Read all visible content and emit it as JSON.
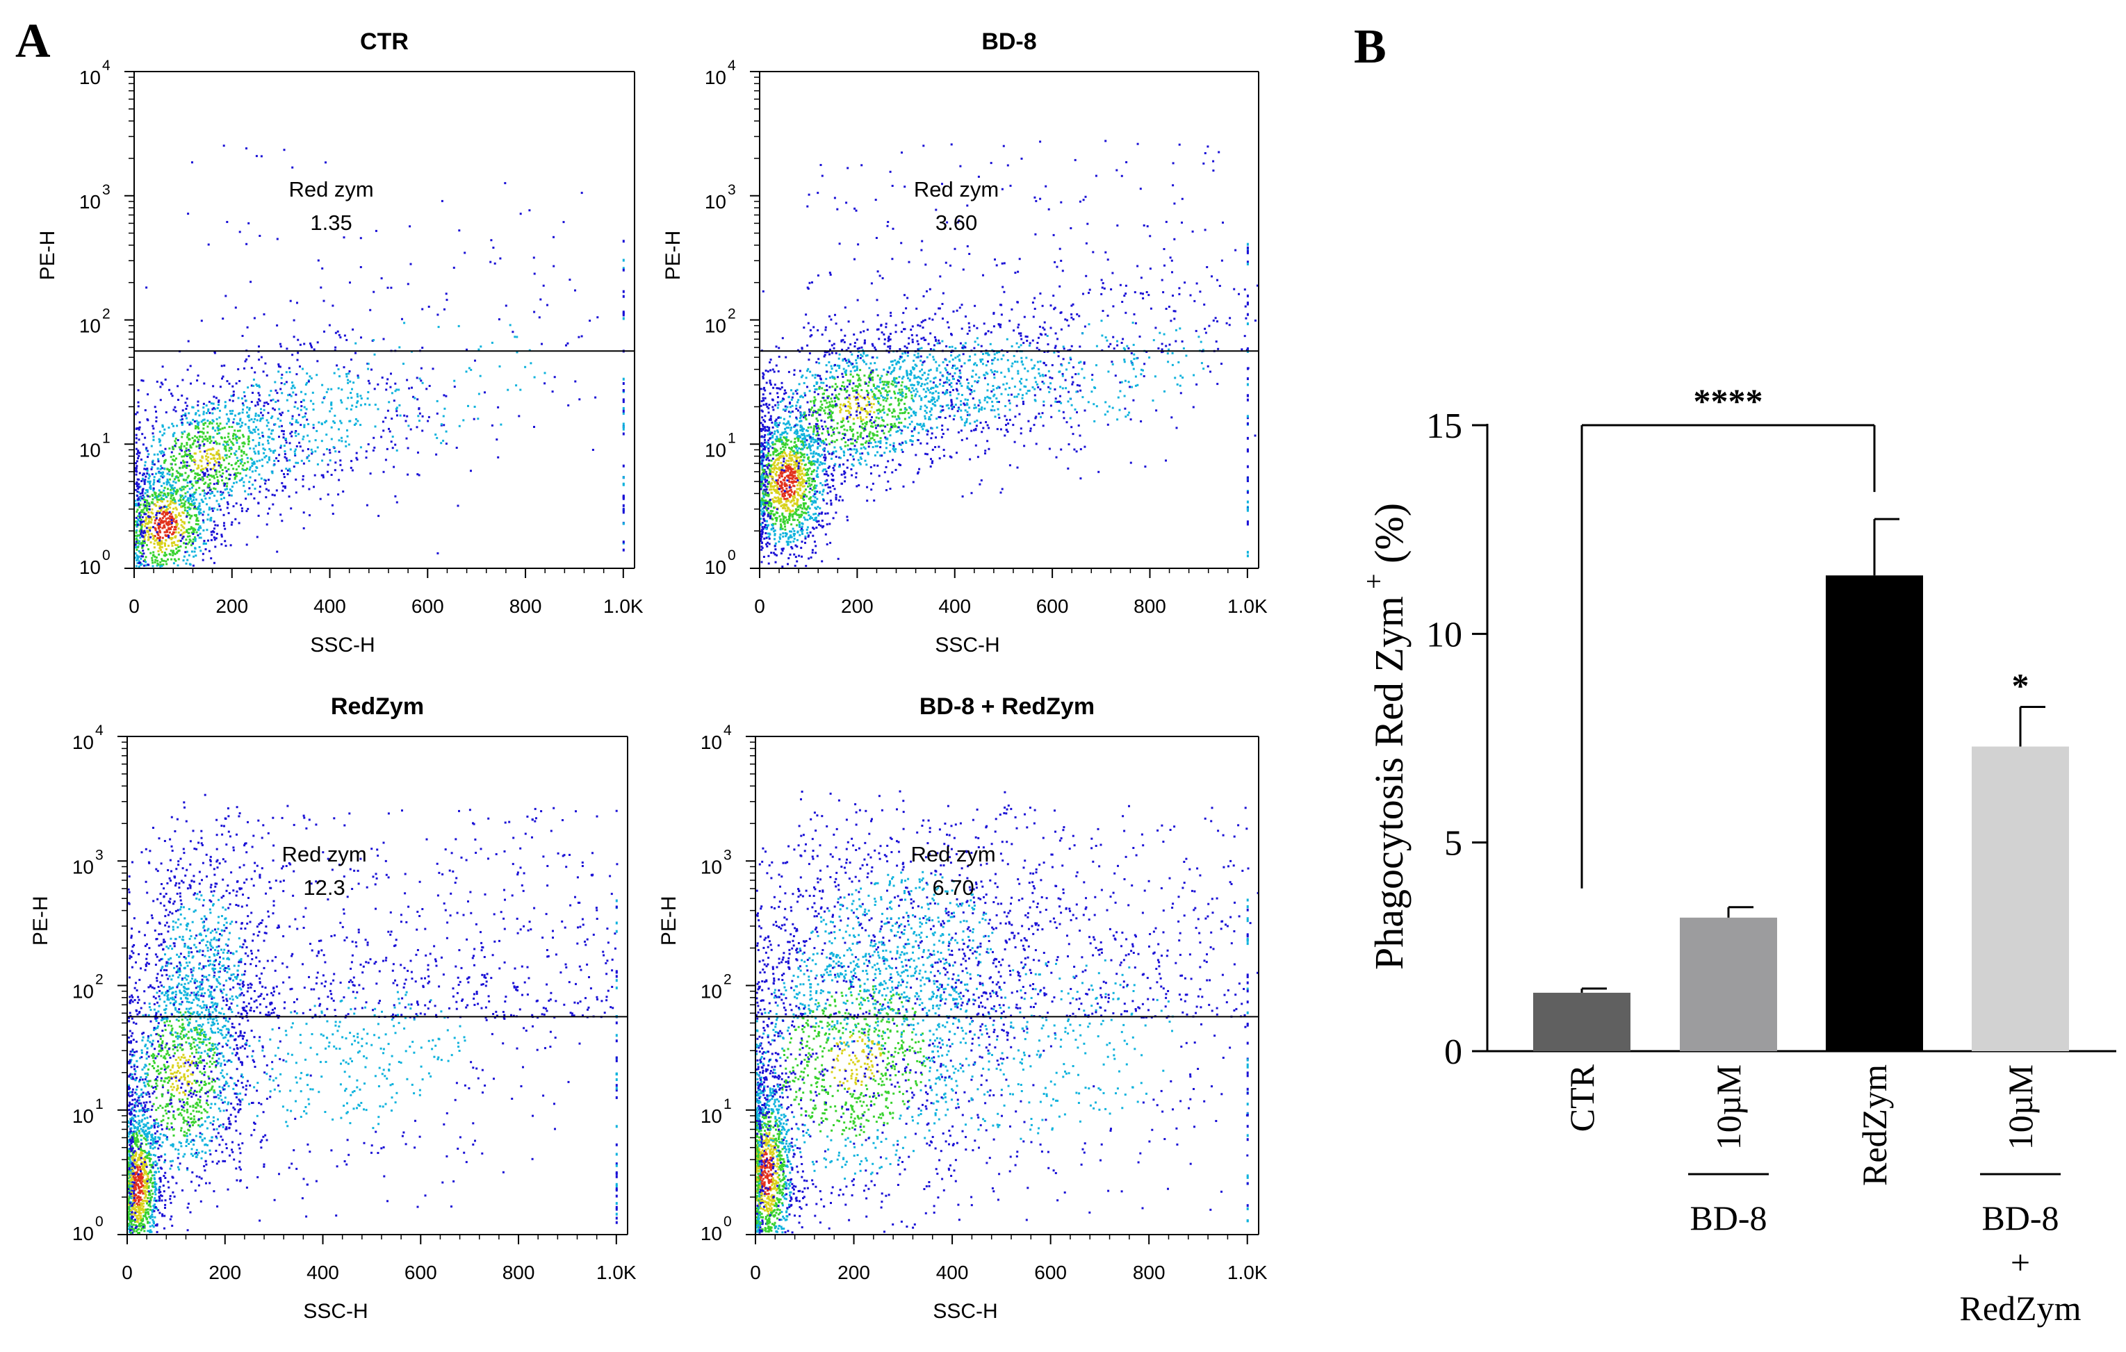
{
  "panel_a": {
    "label": "A",
    "plots": [
      {
        "title": "CTR",
        "gate_name": "Red zym",
        "gate_value": "1.35",
        "xlabel": "SSC-H",
        "ylabel": "PE-H"
      },
      {
        "title": "BD-8",
        "gate_name": "Red zym",
        "gate_value": "3.60",
        "xlabel": "SSC-H",
        "ylabel": "PE-H"
      },
      {
        "title": "RedZym",
        "gate_name": "Red zym",
        "gate_value": "12.3",
        "xlabel": "SSC-H",
        "ylabel": "PE-H"
      },
      {
        "title": "BD-8 + RedZym",
        "gate_name": "Red zym",
        "gate_value": "6.70",
        "xlabel": "SSC-H",
        "ylabel": "PE-H"
      }
    ],
    "x_ticks": [
      "0",
      "200",
      "400",
      "600",
      "800",
      "1.0K"
    ],
    "y_tick_base": "10",
    "y_tick_exponents": [
      "0",
      "1",
      "2",
      "3",
      "4"
    ]
  },
  "panel_b": {
    "label": "B",
    "bar_labels": [
      {
        "line1": "CTR"
      },
      {
        "line1": "10µM",
        "line2": "BD-8"
      },
      {
        "line1": "RedZym"
      },
      {
        "line1": "10µM",
        "line2": "BD-8",
        "line3": "+",
        "line4": "RedZym"
      }
    ],
    "significance": {
      "bracket": "****",
      "bar4": "*"
    }
  },
  "colors": {
    "bar1": "#606060",
    "bar2": "#9c9c9e",
    "bar3": "#000000",
    "bar4": "#d2d2d2",
    "dot_blue": "#1a10d6",
    "dot_cyan": "#11b3dd",
    "dot_green": "#38d22f",
    "dot_yellow": "#d9d21c",
    "dot_red": "#e2321c"
  },
  "chart_data": [
    {
      "type": "scatter",
      "title": "CTR",
      "xlabel": "SSC-H",
      "ylabel": "PE-H",
      "xlim": [
        0,
        1023
      ],
      "ylim_log10": [
        0,
        4
      ],
      "gate": {
        "name": "Red zym",
        "value": 1.35,
        "threshold_log10": 1.75
      }
    },
    {
      "type": "scatter",
      "title": "BD-8",
      "xlabel": "SSC-H",
      "ylabel": "PE-H",
      "xlim": [
        0,
        1023
      ],
      "ylim_log10": [
        0,
        4
      ],
      "gate": {
        "name": "Red zym",
        "value": 3.6,
        "threshold_log10": 1.75
      }
    },
    {
      "type": "scatter",
      "title": "RedZym",
      "xlabel": "SSC-H",
      "ylabel": "PE-H",
      "xlim": [
        0,
        1023
      ],
      "ylim_log10": [
        0,
        4
      ],
      "gate": {
        "name": "Red zym",
        "value": 12.3,
        "threshold_log10": 1.75
      }
    },
    {
      "type": "scatter",
      "title": "BD-8 + RedZym",
      "xlabel": "SSC-H",
      "ylabel": "PE-H",
      "xlim": [
        0,
        1023
      ],
      "ylim_log10": [
        0,
        4
      ],
      "gate": {
        "name": "Red zym",
        "value": 6.7,
        "threshold_log10": 1.75
      }
    },
    {
      "type": "bar",
      "categories": [
        "CTR",
        "10µM BD-8",
        "RedZym",
        "10µM BD-8 + RedZym"
      ],
      "values": [
        1.4,
        3.2,
        11.4,
        7.3
      ],
      "errors": [
        0.1,
        0.25,
        1.35,
        0.95
      ],
      "ylabel": "Phagocytosis Red Zym",
      "ylabel_sup": "+",
      "ylabel_unit": " (%)",
      "ylim": [
        0,
        15
      ],
      "yticks": [
        "0",
        "5",
        "10",
        "15"
      ],
      "annotations": [
        {
          "text": "****",
          "from": "CTR",
          "to": "RedZym"
        },
        {
          "text": "*",
          "on": "10µM BD-8 + RedZym"
        }
      ]
    }
  ]
}
